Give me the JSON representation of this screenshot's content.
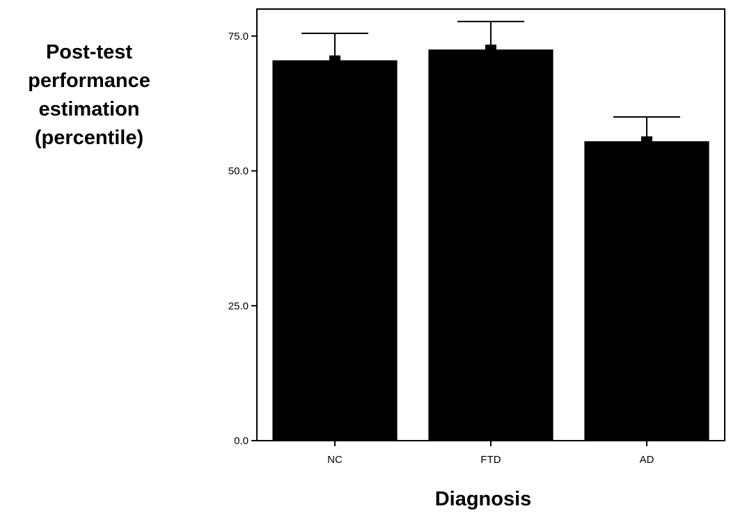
{
  "chart_data": {
    "type": "bar",
    "categories": [
      "NC",
      "FTD",
      "AD"
    ],
    "values": [
      70.5,
      72.5,
      55.5
    ],
    "error_upper": [
      75.5,
      77.7,
      60.0
    ],
    "title": "",
    "xlabel": "Diagnosis",
    "ylabel_lines": [
      "Post-test",
      "performance",
      "estimation",
      "(percentile)"
    ],
    "ylim": [
      0,
      80
    ],
    "yticks": [
      0,
      25,
      50,
      75
    ],
    "ytick_labels": [
      "0.0",
      "25.0",
      "50.0",
      "75.0"
    ],
    "grid": false,
    "bar_color": "#000000"
  }
}
